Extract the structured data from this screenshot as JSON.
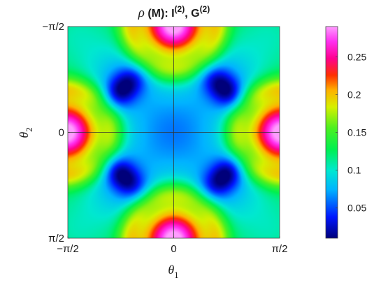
{
  "chart_data": {
    "type": "heatmap",
    "title": {
      "symbol": "ρ",
      "text": " (M):  I",
      "sup1": "(2)",
      "middle": ", G",
      "sup2": "(2)"
    },
    "xlabel": {
      "base": "θ",
      "sub": "1"
    },
    "ylabel": {
      "base": "θ",
      "sub": "2"
    },
    "xlim": [
      -1.5708,
      1.5708
    ],
    "ylim": [
      -1.5708,
      1.5708
    ],
    "y_axis_direction": "reversed",
    "x_ticks": [
      {
        "value": -1.5708,
        "label": "−π/2"
      },
      {
        "value": 0,
        "label": "0"
      },
      {
        "value": 1.5708,
        "label": "π/2"
      }
    ],
    "y_ticks": [
      {
        "value": -1.5708,
        "label": "−π/2"
      },
      {
        "value": 0,
        "label": "0"
      },
      {
        "value": 1.5708,
        "label": "π/2"
      }
    ],
    "crosshair": {
      "x": 0,
      "y": 0
    },
    "colorbar": {
      "colormap": "hsv-like",
      "range": [
        0.01,
        0.29
      ],
      "ticks": [
        {
          "value": 0.05,
          "label": "0.05"
        },
        {
          "value": 0.1,
          "label": "0.1"
        },
        {
          "value": 0.15,
          "label": "0.15"
        },
        {
          "value": 0.2,
          "label": "0.2"
        },
        {
          "value": 0.25,
          "label": "0.25"
        }
      ]
    },
    "field_features": {
      "maxima": [
        {
          "x": 0,
          "y": -1.5708,
          "value": 0.285
        },
        {
          "x": 0,
          "y": 1.5708,
          "value": 0.285
        },
        {
          "x": -1.5708,
          "y": 0,
          "value": 0.285
        },
        {
          "x": 1.5708,
          "y": 0,
          "value": 0.285
        }
      ],
      "minima": [
        {
          "x": -0.75,
          "y": -0.65,
          "value": 0.012
        },
        {
          "x": 0.75,
          "y": -0.65,
          "value": 0.012
        },
        {
          "x": -0.75,
          "y": 0.65,
          "value": 0.012
        },
        {
          "x": 0.75,
          "y": 0.65,
          "value": 0.012
        }
      ],
      "center_value": 0.07,
      "corner_value": 0.075
    }
  }
}
